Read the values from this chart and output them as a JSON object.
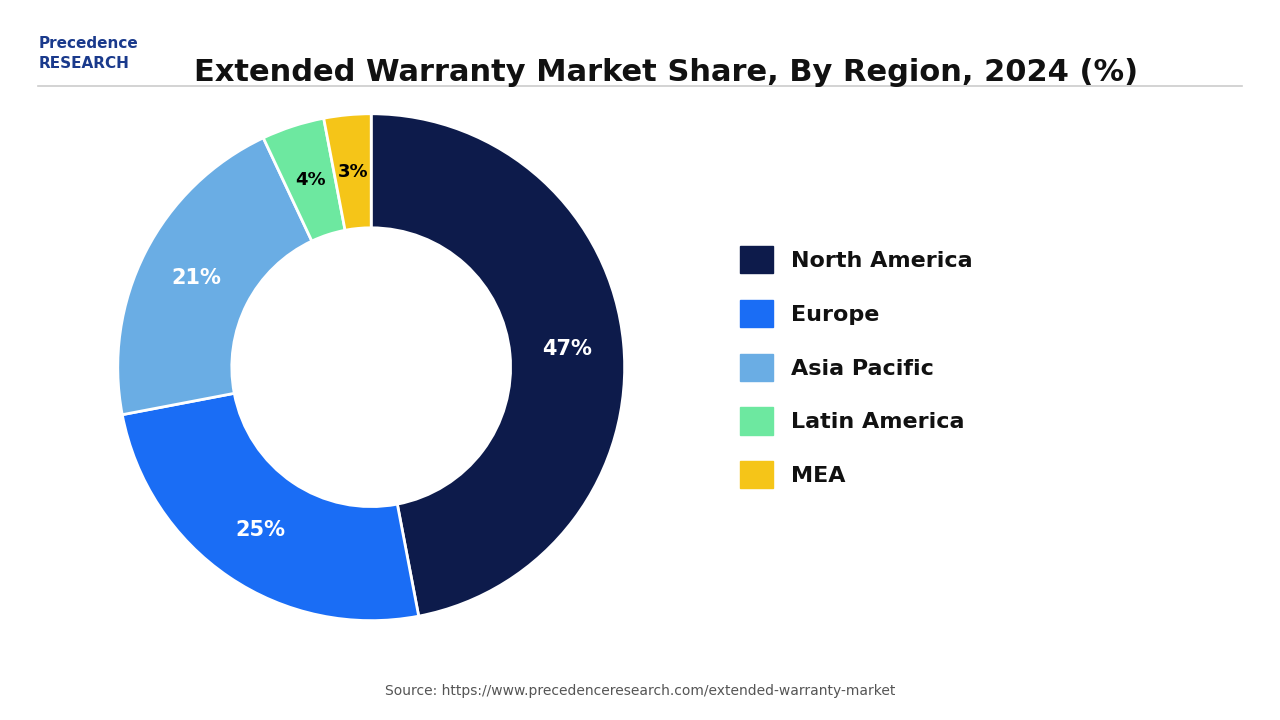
{
  "title": "Extended Warranty Market Share, By Region, 2024 (%)",
  "source": "Source: https://www.precedenceresearch.com/extended-warranty-market",
  "labels": [
    "North America",
    "Europe",
    "Asia Pacific",
    "Latin America",
    "MEA"
  ],
  "values": [
    47,
    25,
    21,
    4,
    3
  ],
  "colors": [
    "#0d1b4b",
    "#1a6df5",
    "#6aade4",
    "#6de8a0",
    "#f5c518"
  ],
  "pct_labels": [
    "47%",
    "25%",
    "21%",
    "4%",
    "3%"
  ],
  "legend_colors": [
    "#0d1b4b",
    "#1a6df5",
    "#6aade4",
    "#6de8a0",
    "#f5c518"
  ],
  "background_color": "#ffffff",
  "title_fontsize": 22,
  "label_fontsize": 15,
  "legend_fontsize": 16
}
